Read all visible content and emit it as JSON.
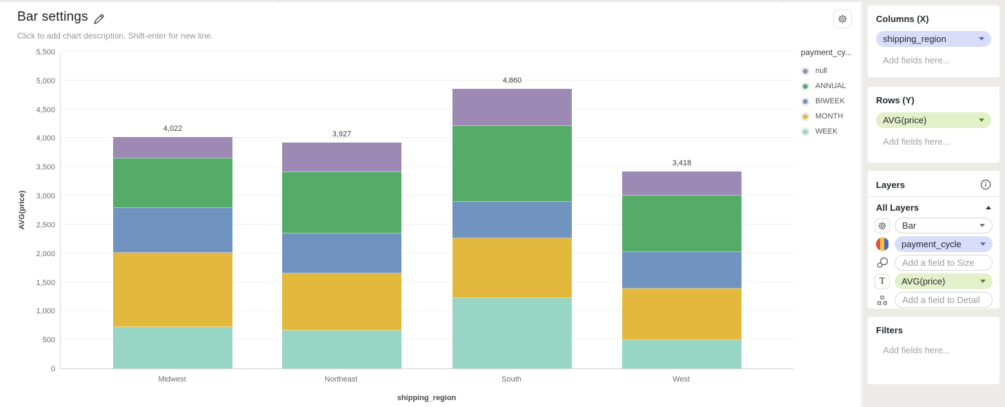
{
  "header": {
    "title": "Bar settings",
    "subtitle": "Click to add chart description. Shift-enter for new line."
  },
  "chart_data": {
    "type": "bar",
    "stacked": true,
    "title": "Bar settings",
    "xlabel": "shipping_region",
    "ylabel": "AVG(price)",
    "ylim": [
      0,
      5500
    ],
    "ytick_step": 500,
    "grid": true,
    "legend_position": "right",
    "legend_title": "payment_cy...",
    "legend_order": [
      "null",
      "ANNUAL",
      "BIWEEK",
      "MONTH",
      "WEEK"
    ],
    "categories": [
      "Midwest",
      "Northeast",
      "South",
      "West"
    ],
    "series": [
      {
        "name": "WEEK",
        "color": "#97d6c5",
        "values": [
          720,
          655,
          1215,
          485
        ]
      },
      {
        "name": "MONTH",
        "color": "#e2b93c",
        "values": [
          1290,
          990,
          1040,
          900
        ]
      },
      {
        "name": "BIWEEK",
        "color": "#7193c0",
        "values": [
          780,
          695,
          635,
          640
        ]
      },
      {
        "name": "ANNUAL",
        "color": "#55ab68",
        "values": [
          855,
          1070,
          1325,
          980
        ]
      },
      {
        "name": "null",
        "color": "#9c8ab4",
        "values": [
          377,
          517,
          645,
          413
        ]
      }
    ],
    "totals": [
      4022,
      3927,
      4860,
      3418
    ],
    "total_labels": [
      "4,022",
      "3,927",
      "4,860",
      "3,418"
    ]
  },
  "sidebar": {
    "columns": {
      "title": "Columns (X)",
      "pill": "shipping_region",
      "placeholder": "Add fields here..."
    },
    "rows": {
      "title": "Rows (Y)",
      "pill": "AVG(price)",
      "placeholder": "Add fields here..."
    },
    "layers": {
      "title": "Layers",
      "group_label": "All Layers",
      "chart_type_value": "Bar",
      "color_field": "payment_cycle",
      "size_placeholder": "Add a field to Size",
      "text_field": "AVG(price)",
      "detail_placeholder": "Add a field to Detail"
    },
    "filters": {
      "title": "Filters",
      "placeholder": "Add fields here..."
    }
  },
  "colors": {
    "dimension_pill_bg": "#d9ddf9",
    "dimension_caret": "#5667c6",
    "measure_pill_bg": "#e4f0c9",
    "measure_caret": "#4f8a2b",
    "sidebar_bg": "#ecebe7",
    "gridline": "#f0f0ee"
  }
}
